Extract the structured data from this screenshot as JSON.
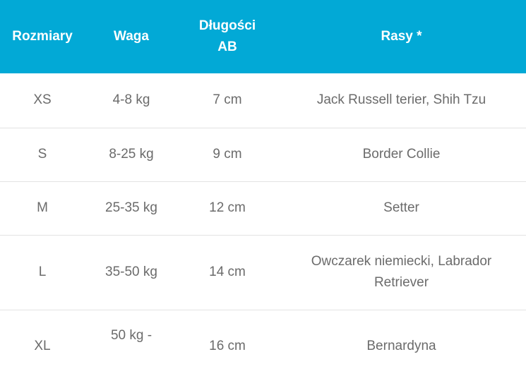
{
  "header": [
    "Rozmiary",
    "Waga",
    "Długości AB",
    "Rasy *"
  ],
  "header_color": "#02a9d6",
  "rows": [
    [
      "XS",
      "4-8 kg",
      "7 cm",
      "Jack Russell terier, Shih Tzu"
    ],
    [
      "S",
      "8-25 kg",
      "9 cm",
      "Border Collie"
    ],
    [
      "M",
      "25-35 kg",
      "12 cm",
      "Setter"
    ],
    [
      "L",
      "35-50 kg",
      "14 cm",
      "Owczarek niemiecki, Labrador Retriever"
    ],
    [
      "XL",
      "50 kg -",
      "16 cm",
      "Bernardyna"
    ]
  ]
}
